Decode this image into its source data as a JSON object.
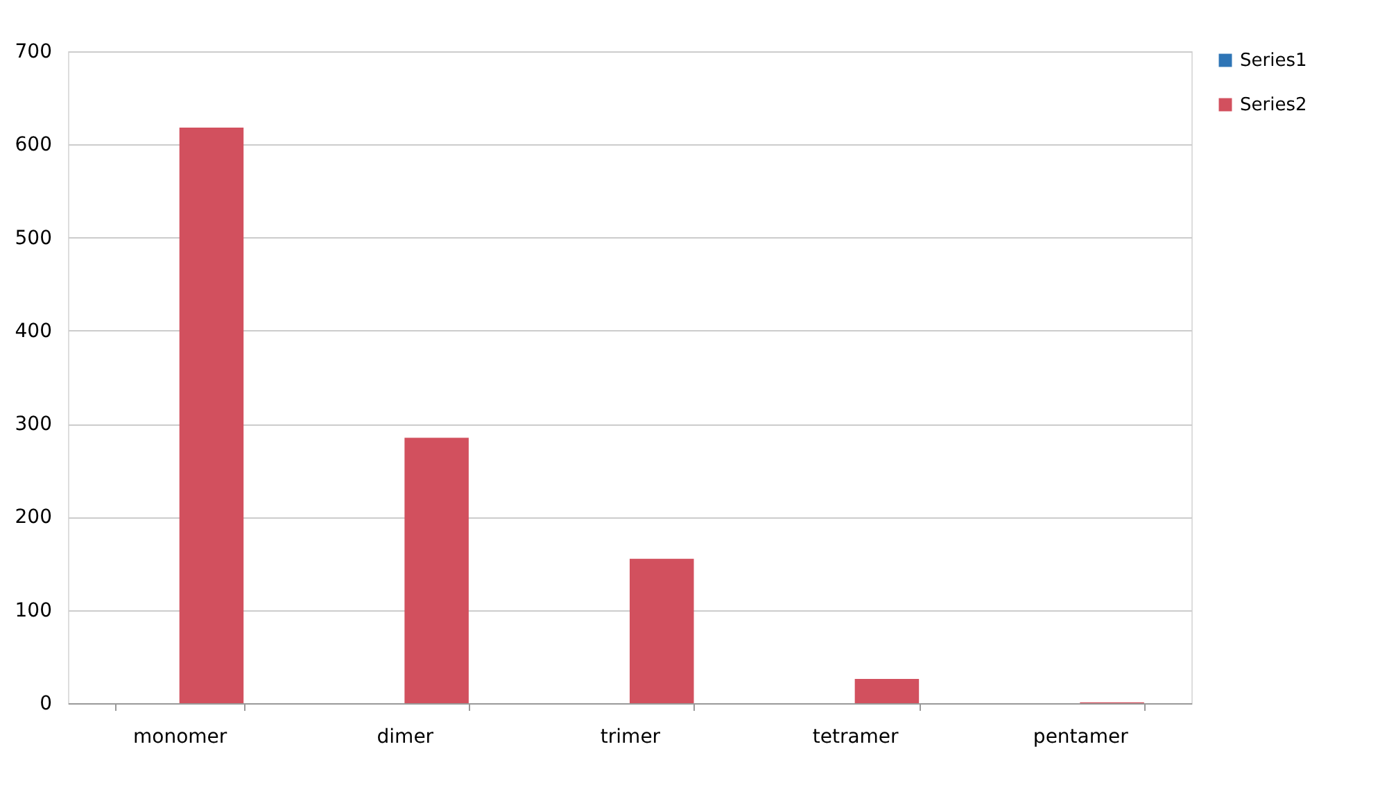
{
  "chart_data": {
    "type": "bar",
    "categories": [
      "monomer",
      "dimer",
      "trimer",
      "tetramer",
      "pentamer"
    ],
    "series": [
      {
        "name": "Series1",
        "color": "#2e75b6",
        "values": [
          null,
          null,
          null,
          null,
          null
        ]
      },
      {
        "name": "Series2",
        "color": "#d2505e",
        "values": [
          618,
          285,
          155,
          26,
          1
        ]
      }
    ],
    "ylim": [
      0,
      700
    ],
    "yticks": [
      0,
      100,
      200,
      300,
      400,
      500,
      600,
      700
    ],
    "grid": "y",
    "legend": "right"
  }
}
